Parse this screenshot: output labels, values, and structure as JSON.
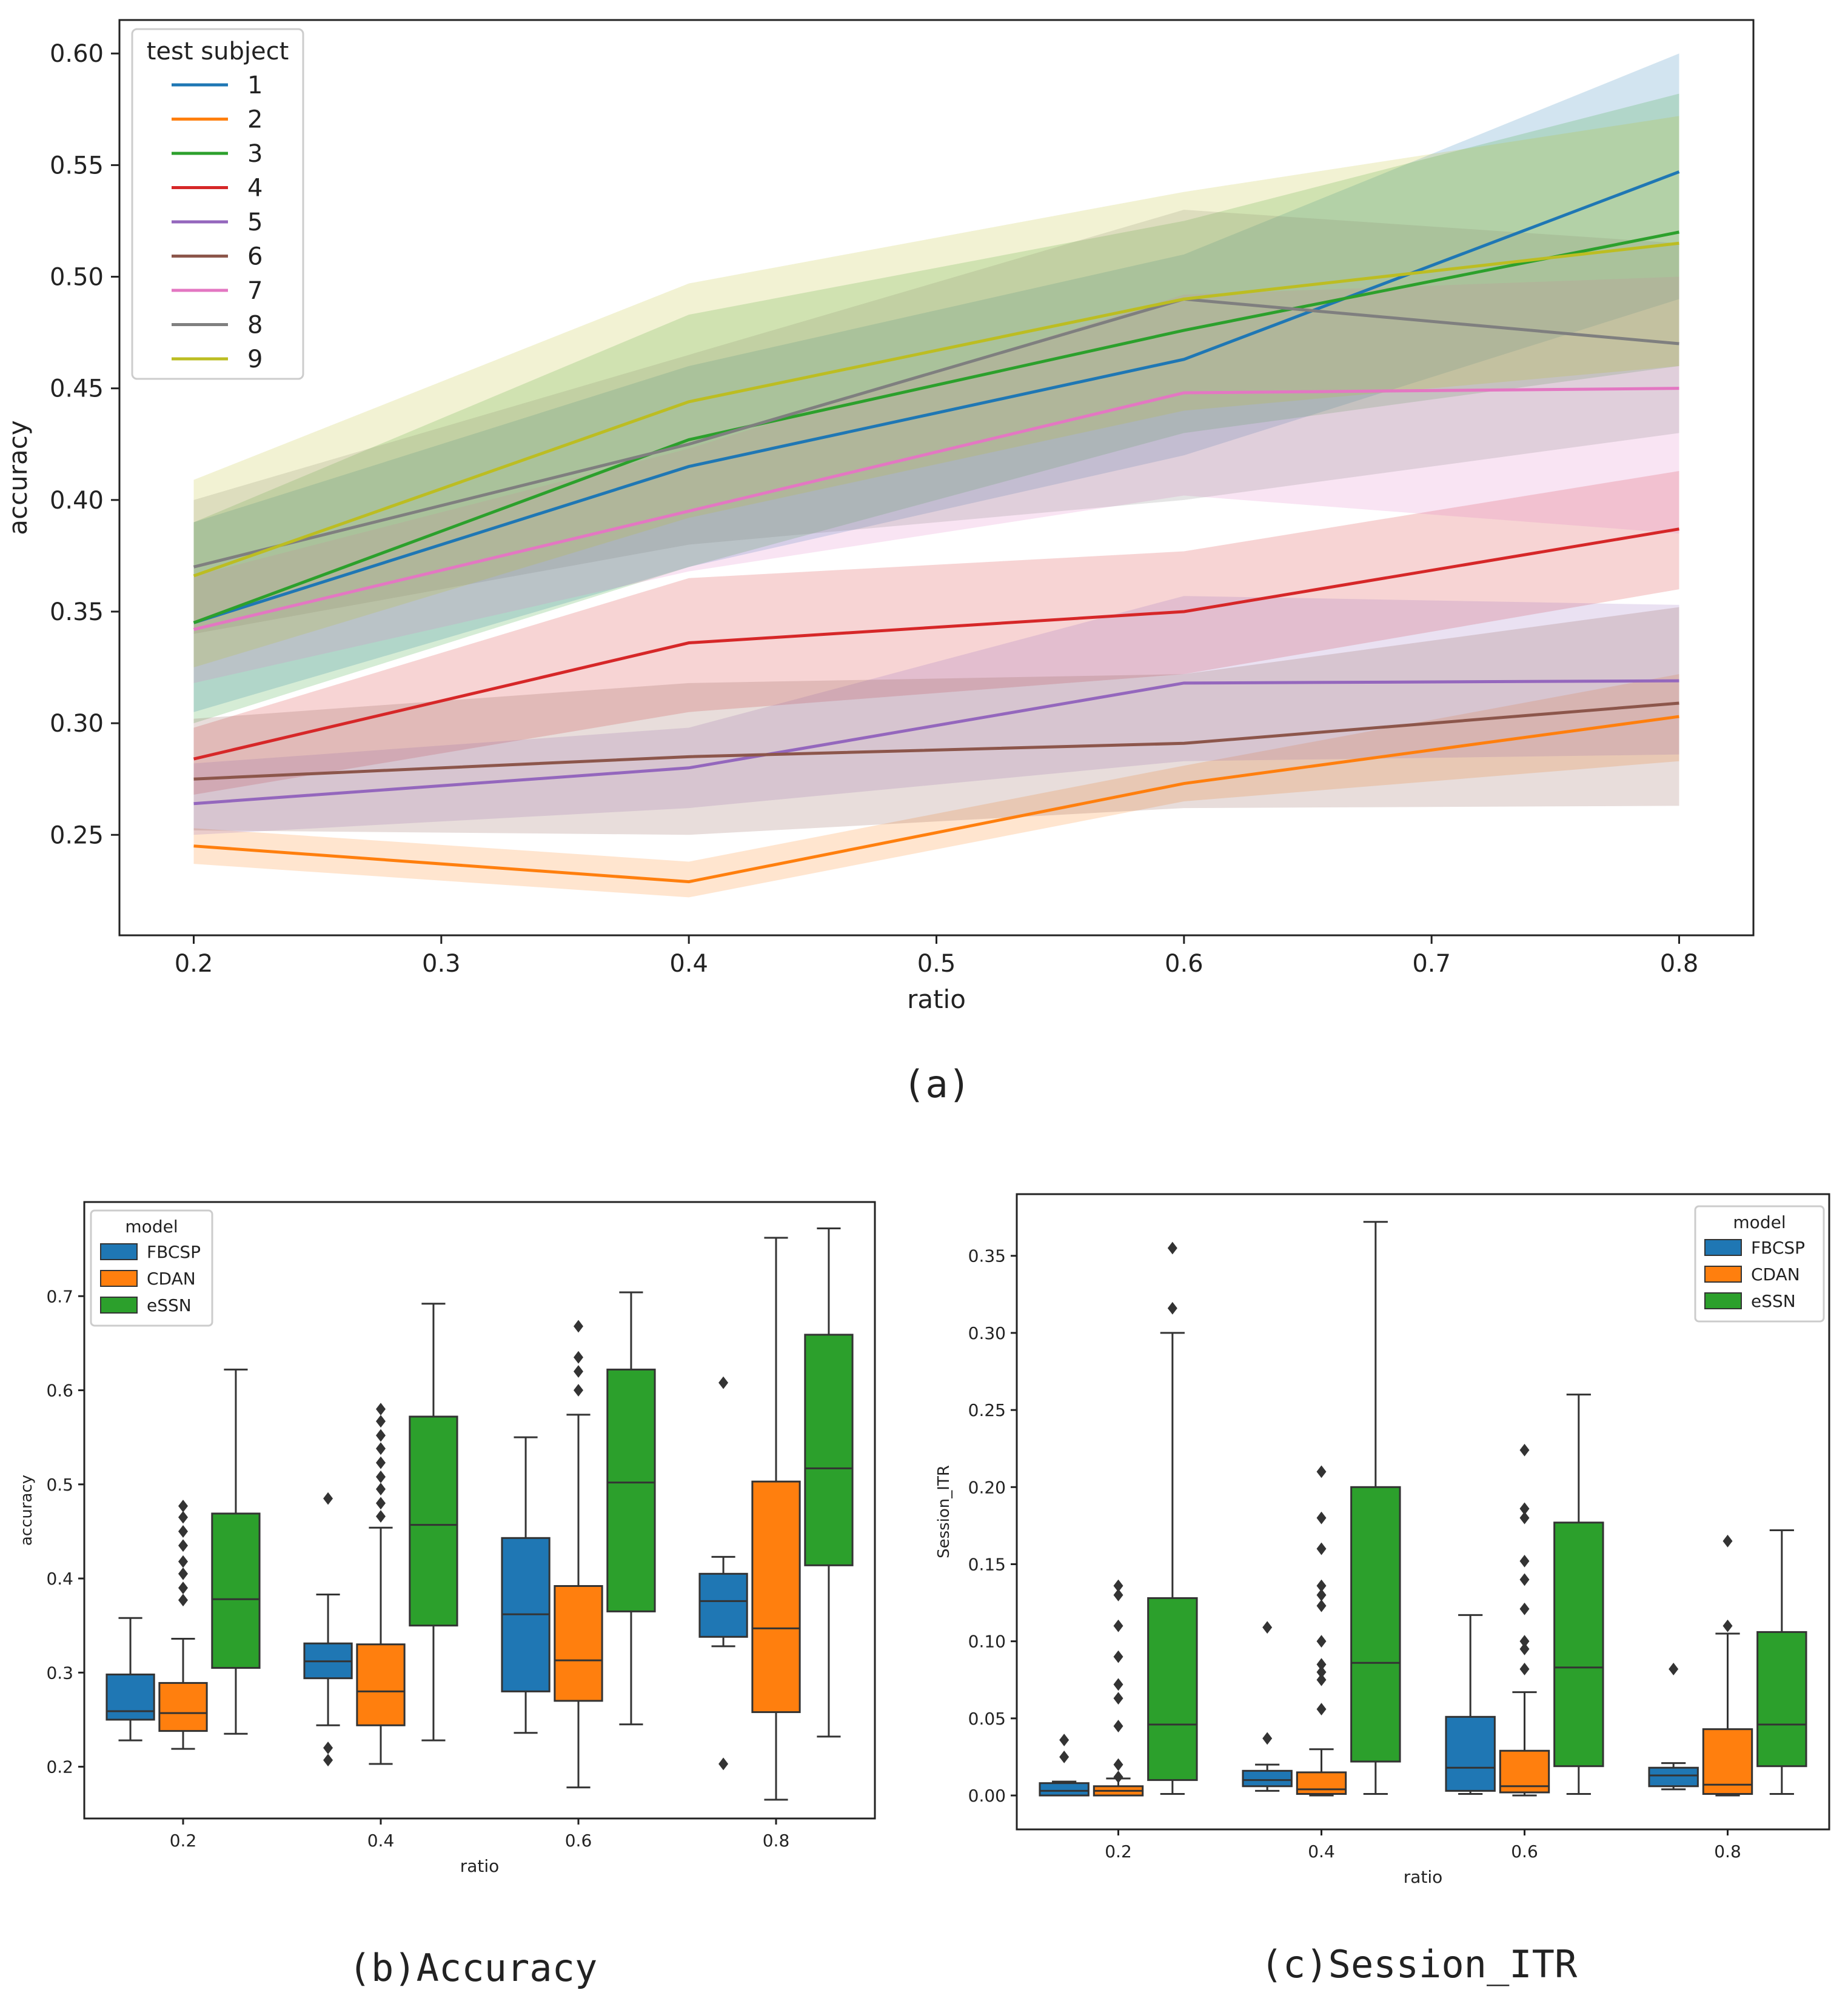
{
  "captions": {
    "a": "(a)",
    "b": "(b)Accuracy",
    "c": "(c)Session_ITR"
  },
  "chart_data": [
    {
      "id": "a",
      "type": "line",
      "xlabel": "ratio",
      "ylabel": "accuracy",
      "xlim": [
        0.17,
        0.83
      ],
      "ylim": [
        0.205,
        0.615
      ],
      "xticks": [
        "0.2",
        "0.3",
        "0.4",
        "0.5",
        "0.6",
        "0.7",
        "0.8"
      ],
      "yticks": [
        "0.25",
        "0.30",
        "0.35",
        "0.40",
        "0.45",
        "0.50",
        "0.55",
        "0.60"
      ],
      "legend": {
        "title": "test subject",
        "position": "top-left"
      },
      "x": [
        0.2,
        0.4,
        0.6,
        0.8
      ],
      "series": [
        {
          "name": "1",
          "color": "#1f77b4",
          "values": [
            0.345,
            0.415,
            0.463,
            0.547
          ],
          "lower": [
            0.305,
            0.37,
            0.42,
            0.49
          ],
          "upper": [
            0.39,
            0.46,
            0.51,
            0.6
          ]
        },
        {
          "name": "2",
          "color": "#ff7f0e",
          "values": [
            0.245,
            0.229,
            0.273,
            0.303
          ],
          "lower": [
            0.237,
            0.222,
            0.265,
            0.283
          ],
          "upper": [
            0.253,
            0.238,
            0.281,
            0.322
          ]
        },
        {
          "name": "3",
          "color": "#2ca02c",
          "values": [
            0.345,
            0.427,
            0.476,
            0.52
          ],
          "lower": [
            0.3,
            0.37,
            0.43,
            0.46
          ],
          "upper": [
            0.39,
            0.483,
            0.525,
            0.582
          ]
        },
        {
          "name": "4",
          "color": "#d62728",
          "values": [
            0.284,
            0.336,
            0.35,
            0.387
          ],
          "lower": [
            0.268,
            0.305,
            0.322,
            0.36
          ],
          "upper": [
            0.298,
            0.365,
            0.377,
            0.413
          ]
        },
        {
          "name": "5",
          "color": "#9467bd",
          "values": [
            0.264,
            0.28,
            0.318,
            0.319
          ],
          "lower": [
            0.25,
            0.262,
            0.283,
            0.286
          ],
          "upper": [
            0.282,
            0.298,
            0.357,
            0.353
          ]
        },
        {
          "name": "6",
          "color": "#8c564b",
          "values": [
            0.275,
            0.285,
            0.291,
            0.309
          ],
          "lower": [
            0.252,
            0.25,
            0.262,
            0.263
          ],
          "upper": [
            0.302,
            0.318,
            0.322,
            0.352
          ]
        },
        {
          "name": "7",
          "color": "#e377c2",
          "values": [
            0.342,
            0.395,
            0.448,
            0.45
          ],
          "lower": [
            0.318,
            0.368,
            0.402,
            0.385
          ],
          "upper": [
            0.366,
            0.423,
            0.492,
            0.5
          ]
        },
        {
          "name": "8",
          "color": "#7f7f7f",
          "values": [
            0.37,
            0.425,
            0.49,
            0.47
          ],
          "lower": [
            0.34,
            0.38,
            0.4,
            0.43
          ],
          "upper": [
            0.4,
            0.465,
            0.53,
            0.515
          ]
        },
        {
          "name": "9",
          "color": "#bcbd22",
          "values": [
            0.366,
            0.444,
            0.49,
            0.515
          ],
          "lower": [
            0.325,
            0.392,
            0.44,
            0.46
          ],
          "upper": [
            0.409,
            0.497,
            0.538,
            0.572
          ]
        }
      ]
    },
    {
      "id": "b",
      "type": "box",
      "xlabel": "ratio",
      "ylabel": "accuracy",
      "ylim": [
        0.145,
        0.8
      ],
      "yticks": [
        "0.2",
        "0.3",
        "0.4",
        "0.5",
        "0.6",
        "0.7"
      ],
      "categories": [
        "0.2",
        "0.4",
        "0.6",
        "0.8"
      ],
      "legend": {
        "title": "model",
        "position": "top-left"
      },
      "series": [
        {
          "name": "FBCSP",
          "color": "#1f77b4",
          "boxes": [
            {
              "min": 0.228,
              "q1": 0.25,
              "median": 0.259,
              "q3": 0.298,
              "max": 0.358,
              "outliers": []
            },
            {
              "min": 0.244,
              "q1": 0.294,
              "median": 0.312,
              "q3": 0.331,
              "max": 0.383,
              "outliers": [
                0.485,
                0.22,
                0.207
              ]
            },
            {
              "min": 0.236,
              "q1": 0.28,
              "median": 0.362,
              "q3": 0.443,
              "max": 0.55,
              "outliers": []
            },
            {
              "min": 0.328,
              "q1": 0.338,
              "median": 0.376,
              "q3": 0.405,
              "max": 0.423,
              "outliers": [
                0.608,
                0.203
              ]
            }
          ]
        },
        {
          "name": "CDAN",
          "color": "#ff7f0e",
          "boxes": [
            {
              "min": 0.219,
              "q1": 0.238,
              "median": 0.257,
              "q3": 0.289,
              "max": 0.336,
              "outliers": [
                0.477,
                0.465,
                0.45,
                0.435,
                0.418,
                0.405,
                0.39,
                0.377
              ]
            },
            {
              "min": 0.203,
              "q1": 0.244,
              "median": 0.28,
              "q3": 0.33,
              "max": 0.454,
              "outliers": [
                0.58,
                0.567,
                0.552,
                0.538,
                0.523,
                0.508,
                0.495,
                0.48,
                0.466
              ]
            },
            {
              "min": 0.178,
              "q1": 0.27,
              "median": 0.313,
              "q3": 0.392,
              "max": 0.574,
              "outliers": [
                0.668,
                0.635,
                0.62,
                0.6
              ]
            },
            {
              "min": 0.165,
              "q1": 0.258,
              "median": 0.347,
              "q3": 0.503,
              "max": 0.762,
              "outliers": []
            }
          ]
        },
        {
          "name": "eSSN",
          "color": "#2ca02c",
          "boxes": [
            {
              "min": 0.235,
              "q1": 0.305,
              "median": 0.378,
              "q3": 0.469,
              "max": 0.622,
              "outliers": []
            },
            {
              "min": 0.228,
              "q1": 0.35,
              "median": 0.457,
              "q3": 0.572,
              "max": 0.692,
              "outliers": []
            },
            {
              "min": 0.245,
              "q1": 0.365,
              "median": 0.502,
              "q3": 0.622,
              "max": 0.704,
              "outliers": []
            },
            {
              "min": 0.232,
              "q1": 0.414,
              "median": 0.517,
              "q3": 0.659,
              "max": 0.772,
              "outliers": []
            }
          ]
        }
      ]
    },
    {
      "id": "c",
      "type": "box",
      "xlabel": "ratio",
      "ylabel": "Session_ITR",
      "ylim": [
        -0.022,
        0.39
      ],
      "yticks": [
        "0.00",
        "0.05",
        "0.10",
        "0.15",
        "0.20",
        "0.25",
        "0.30",
        "0.35"
      ],
      "categories": [
        "0.2",
        "0.4",
        "0.6",
        "0.8"
      ],
      "legend": {
        "title": "model",
        "position": "top-right"
      },
      "series": [
        {
          "name": "FBCSP",
          "color": "#1f77b4",
          "boxes": [
            {
              "min": 0.0,
              "q1": 0.0,
              "median": 0.003,
              "q3": 0.008,
              "max": 0.009,
              "outliers": [
                0.036,
                0.025
              ]
            },
            {
              "min": 0.003,
              "q1": 0.006,
              "median": 0.01,
              "q3": 0.016,
              "max": 0.02,
              "outliers": [
                0.109,
                0.037
              ]
            },
            {
              "min": 0.001,
              "q1": 0.003,
              "median": 0.018,
              "q3": 0.051,
              "max": 0.117,
              "outliers": []
            },
            {
              "min": 0.004,
              "q1": 0.006,
              "median": 0.013,
              "q3": 0.018,
              "max": 0.021,
              "outliers": [
                0.082
              ]
            }
          ]
        },
        {
          "name": "CDAN",
          "color": "#ff7f0e",
          "boxes": [
            {
              "min": 0.0,
              "q1": 0.0,
              "median": 0.003,
              "q3": 0.006,
              "max": 0.011,
              "outliers": [
                0.136,
                0.13,
                0.11,
                0.09,
                0.072,
                0.063,
                0.045,
                0.02,
                0.012
              ]
            },
            {
              "min": 0.0,
              "q1": 0.001,
              "median": 0.004,
              "q3": 0.015,
              "max": 0.03,
              "outliers": [
                0.21,
                0.18,
                0.16,
                0.136,
                0.13,
                0.123,
                0.1,
                0.085,
                0.08,
                0.075,
                0.056
              ]
            },
            {
              "min": 0.0,
              "q1": 0.002,
              "median": 0.006,
              "q3": 0.029,
              "max": 0.067,
              "outliers": [
                0.224,
                0.186,
                0.18,
                0.152,
                0.14,
                0.121,
                0.1,
                0.095,
                0.082
              ]
            },
            {
              "min": 0.0,
              "q1": 0.001,
              "median": 0.007,
              "q3": 0.043,
              "max": 0.105,
              "outliers": [
                0.165,
                0.11
              ]
            }
          ]
        },
        {
          "name": "eSSN",
          "color": "#2ca02c",
          "boxes": [
            {
              "min": 0.001,
              "q1": 0.01,
              "median": 0.046,
              "q3": 0.128,
              "max": 0.3,
              "outliers": [
                0.355,
                0.316
              ]
            },
            {
              "min": 0.001,
              "q1": 0.022,
              "median": 0.086,
              "q3": 0.2,
              "max": 0.372,
              "outliers": []
            },
            {
              "min": 0.001,
              "q1": 0.019,
              "median": 0.083,
              "q3": 0.177,
              "max": 0.26,
              "outliers": []
            },
            {
              "min": 0.001,
              "q1": 0.019,
              "median": 0.046,
              "q3": 0.106,
              "max": 0.172,
              "outliers": []
            }
          ]
        }
      ]
    }
  ]
}
